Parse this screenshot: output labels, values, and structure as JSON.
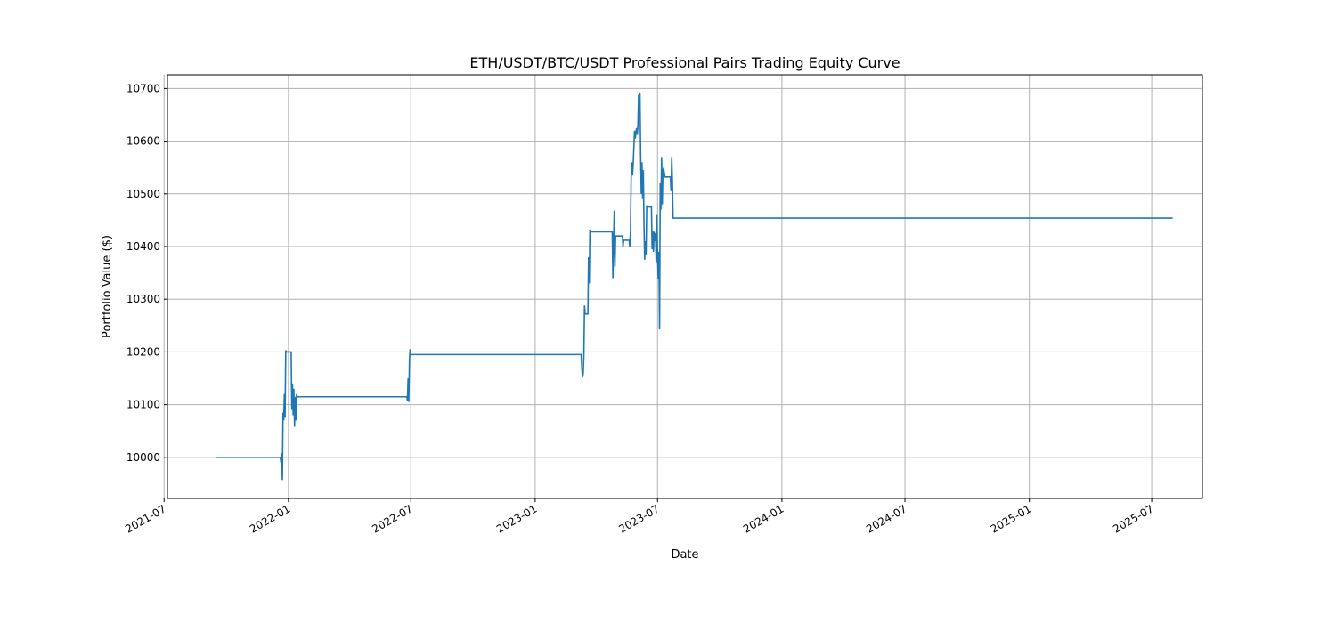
{
  "chart_data": {
    "type": "line",
    "title": "ETH/USDT/BTC/USDT Professional Pairs Trading Equity Curve",
    "xlabel": "Date",
    "ylabel": "Portfolio Value ($)",
    "grid": true,
    "legend": "none",
    "xlim": [
      "2021-07-06",
      "2025-09-14"
    ],
    "ylim": [
      9922,
      10726
    ],
    "x_ticks": [
      "2021-07",
      "2022-01",
      "2022-07",
      "2023-01",
      "2023-07",
      "2024-01",
      "2024-07",
      "2025-01",
      "2025-07"
    ],
    "y_ticks": [
      10000,
      10100,
      10200,
      10300,
      10400,
      10500,
      10600,
      10700
    ],
    "series": [
      {
        "color": "#1f77b4",
        "points": [
          [
            "2021-09-15",
            10000
          ],
          [
            "2021-12-20",
            10000
          ],
          [
            "2021-12-21",
            9990
          ],
          [
            "2021-12-22",
            10008
          ],
          [
            "2021-12-23",
            9957
          ],
          [
            "2021-12-24",
            10085
          ],
          [
            "2021-12-25",
            10070
          ],
          [
            "2021-12-26",
            10120
          ],
          [
            "2021-12-27",
            10075
          ],
          [
            "2021-12-28",
            10203
          ],
          [
            "2021-12-29",
            10200
          ],
          [
            "2022-01-05",
            10200
          ],
          [
            "2022-01-06",
            10090
          ],
          [
            "2022-01-07",
            10140
          ],
          [
            "2022-01-08",
            10080
          ],
          [
            "2022-01-09",
            10130
          ],
          [
            "2022-01-10",
            10058
          ],
          [
            "2022-01-11",
            10115
          ],
          [
            "2022-01-12",
            10070
          ],
          [
            "2022-01-13",
            10120
          ],
          [
            "2022-01-14",
            10115
          ],
          [
            "2022-06-25",
            10115
          ],
          [
            "2022-06-26",
            10108
          ],
          [
            "2022-06-27",
            10150
          ],
          [
            "2022-06-28",
            10105
          ],
          [
            "2022-06-29",
            10185
          ],
          [
            "2022-06-30",
            10205
          ],
          [
            "2022-07-01",
            10195
          ],
          [
            "2023-03-10",
            10195
          ],
          [
            "2023-03-11",
            10170
          ],
          [
            "2023-03-12",
            10152
          ],
          [
            "2023-03-13",
            10158
          ],
          [
            "2023-03-14",
            10190
          ],
          [
            "2023-03-15",
            10288
          ],
          [
            "2023-03-16",
            10272
          ],
          [
            "2023-03-20",
            10272
          ],
          [
            "2023-03-21",
            10380
          ],
          [
            "2023-03-22",
            10330
          ],
          [
            "2023-03-23",
            10432
          ],
          [
            "2023-03-24",
            10428
          ],
          [
            "2023-04-25",
            10428
          ],
          [
            "2023-04-26",
            10340
          ],
          [
            "2023-04-27",
            10410
          ],
          [
            "2023-04-28",
            10468
          ],
          [
            "2023-04-29",
            10362
          ],
          [
            "2023-04-30",
            10420
          ],
          [
            "2023-05-10",
            10420
          ],
          [
            "2023-05-11",
            10400
          ],
          [
            "2023-05-12",
            10412
          ],
          [
            "2023-05-20",
            10412
          ],
          [
            "2023-05-21",
            10400
          ],
          [
            "2023-05-22",
            10430
          ],
          [
            "2023-05-23",
            10530
          ],
          [
            "2023-05-24",
            10560
          ],
          [
            "2023-05-25",
            10535
          ],
          [
            "2023-05-26",
            10555
          ],
          [
            "2023-05-28",
            10620
          ],
          [
            "2023-05-29",
            10605
          ],
          [
            "2023-05-31",
            10625
          ],
          [
            "2023-06-01",
            10612
          ],
          [
            "2023-06-02",
            10630
          ],
          [
            "2023-06-03",
            10688
          ],
          [
            "2023-06-04",
            10672
          ],
          [
            "2023-06-05",
            10692
          ],
          [
            "2023-06-06",
            10575
          ],
          [
            "2023-06-07",
            10500
          ],
          [
            "2023-06-08",
            10560
          ],
          [
            "2023-06-09",
            10490
          ],
          [
            "2023-06-10",
            10545
          ],
          [
            "2023-06-11",
            10440
          ],
          [
            "2023-06-12",
            10375
          ],
          [
            "2023-06-13",
            10410
          ],
          [
            "2023-06-14",
            10385
          ],
          [
            "2023-06-15",
            10478
          ],
          [
            "2023-06-16",
            10475
          ],
          [
            "2023-06-22",
            10475
          ],
          [
            "2023-06-23",
            10395
          ],
          [
            "2023-06-24",
            10430
          ],
          [
            "2023-06-25",
            10390
          ],
          [
            "2023-06-26",
            10428
          ],
          [
            "2023-06-27",
            10410
          ],
          [
            "2023-06-28",
            10425
          ],
          [
            "2023-06-29",
            10370
          ],
          [
            "2023-06-30",
            10460
          ],
          [
            "2023-07-01",
            10385
          ],
          [
            "2023-07-02",
            10338
          ],
          [
            "2023-07-03",
            10390
          ],
          [
            "2023-07-04",
            10243
          ],
          [
            "2023-07-05",
            10520
          ],
          [
            "2023-07-06",
            10470
          ],
          [
            "2023-07-07",
            10570
          ],
          [
            "2023-07-08",
            10480
          ],
          [
            "2023-07-09",
            10545
          ],
          [
            "2023-07-10",
            10548
          ],
          [
            "2023-07-12",
            10532
          ],
          [
            "2023-07-20",
            10532
          ],
          [
            "2023-07-21",
            10505
          ],
          [
            "2023-07-22",
            10570
          ],
          [
            "2023-07-23",
            10525
          ],
          [
            "2023-07-24",
            10454
          ],
          [
            "2025-08-01",
            10454
          ]
        ]
      }
    ]
  }
}
